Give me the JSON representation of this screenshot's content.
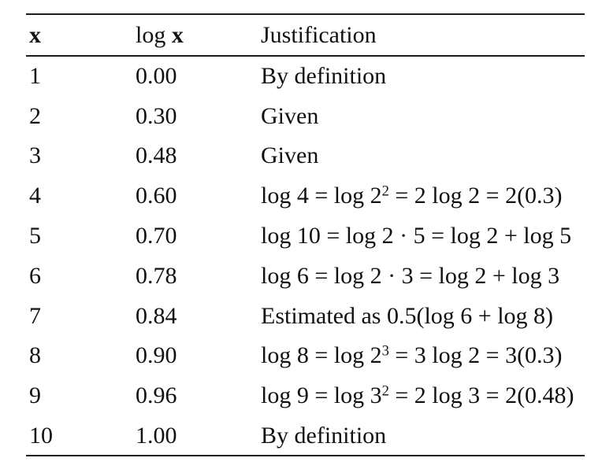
{
  "table": {
    "columns": [
      {
        "key": "x",
        "segments": [
          {
            "text": "x",
            "bold": true
          }
        ]
      },
      {
        "key": "log-x",
        "segments": [
          {
            "text": "log "
          },
          {
            "text": "x",
            "bold": true
          }
        ]
      },
      {
        "key": "justification",
        "segments": [
          {
            "text": "Justification"
          }
        ]
      }
    ],
    "rows": [
      {
        "x": "1",
        "logx": "0.00",
        "justification": [
          {
            "text": "By definition"
          }
        ]
      },
      {
        "x": "2",
        "logx": "0.30",
        "justification": [
          {
            "text": "Given"
          }
        ]
      },
      {
        "x": "3",
        "logx": "0.48",
        "justification": [
          {
            "text": "Given"
          }
        ]
      },
      {
        "x": "4",
        "logx": "0.60",
        "justification": [
          {
            "text": "log 4 = log 2"
          },
          {
            "text": "2",
            "sup": true
          },
          {
            "text": " = 2 log 2 = 2(0.3)"
          }
        ]
      },
      {
        "x": "5",
        "logx": "0.70",
        "justification": [
          {
            "text": "log 10 = log 2 · 5 = log 2 + log 5"
          }
        ]
      },
      {
        "x": "6",
        "logx": "0.78",
        "justification": [
          {
            "text": "log 6 = log 2 · 3 = log 2 + log 3"
          }
        ]
      },
      {
        "x": "7",
        "logx": "0.84",
        "justification": [
          {
            "text": "Estimated as 0.5(log 6 + log 8)"
          }
        ]
      },
      {
        "x": "8",
        "logx": "0.90",
        "justification": [
          {
            "text": "log 8 = log 2"
          },
          {
            "text": "3",
            "sup": true
          },
          {
            "text": " = 3 log 2 = 3(0.3)"
          }
        ]
      },
      {
        "x": "9",
        "logx": "0.96",
        "justification": [
          {
            "text": "log 9 = log 3"
          },
          {
            "text": "2",
            "sup": true
          },
          {
            "text": " = 2 log 3 = 2(0.48)"
          }
        ]
      },
      {
        "x": "10",
        "logx": "1.00",
        "justification": [
          {
            "text": "By definition"
          }
        ]
      }
    ]
  },
  "colors": {
    "background": "#ffffff",
    "text": "#111111",
    "rule": "#1c1c1c"
  }
}
